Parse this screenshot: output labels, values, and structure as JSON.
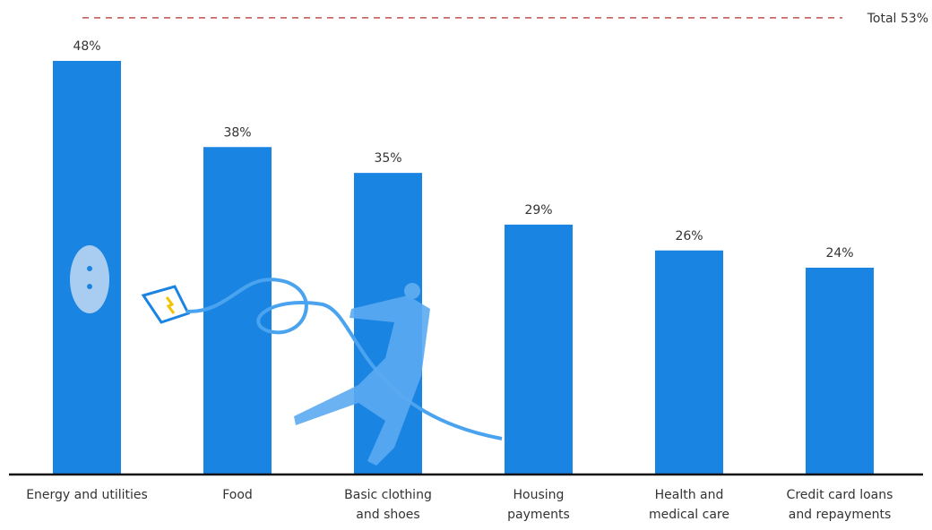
{
  "chart_data": {
    "type": "bar",
    "categories": [
      "Energy and utilities",
      "Food",
      "Basic clothing\nand shoes",
      "Housing\npayments",
      "Health and\nmedical care",
      "Credit card loans\nand repayments"
    ],
    "values": [
      48,
      38,
      35,
      29,
      26,
      24
    ],
    "value_labels": [
      "48%",
      "38%",
      "35%",
      "29%",
      "26%",
      "24%"
    ],
    "color": "#1a84e3",
    "reference_line": {
      "value": 53,
      "label": "Total 53%",
      "color": "#c0504d"
    }
  }
}
